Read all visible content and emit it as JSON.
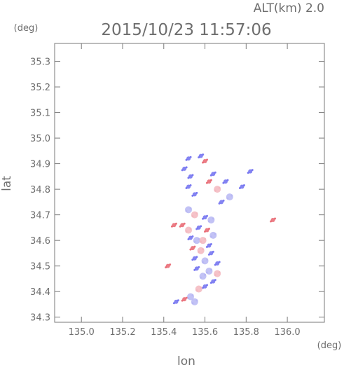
{
  "header": {
    "altitude": "ALT(km)  2.0",
    "timestamp": "2015/10/23 11:57:06"
  },
  "chart_data": {
    "type": "heatmap",
    "title": "2015/10/23 11:57:06",
    "annotation": "ALT(km)  2.0",
    "xlabel": "lon",
    "ylabel": "lat",
    "x_unit": "(deg)",
    "y_unit": "(deg)",
    "xlim": [
      134.87,
      136.18
    ],
    "ylim": [
      34.28,
      35.37
    ],
    "xticks": [
      "135.0",
      "135.2",
      "135.4",
      "135.6",
      "135.8",
      "136.0"
    ],
    "yticks": [
      "34.3",
      "34.4",
      "34.5",
      "34.6",
      "34.7",
      "34.8",
      "34.9",
      "35.0",
      "35.1",
      "35.2",
      "35.3"
    ],
    "colors": {
      "positive": "#e8646e",
      "negative": "#6e6ef0",
      "light_positive": "#f3b7be",
      "light_negative": "#b7b7f3",
      "axis": "#7a7a7a"
    },
    "speckles": [
      [
        135.52,
        34.92,
        "negative"
      ],
      [
        135.58,
        34.93,
        "negative"
      ],
      [
        135.6,
        34.91,
        "positive"
      ],
      [
        135.5,
        34.88,
        "negative"
      ],
      [
        135.53,
        34.85,
        "negative"
      ],
      [
        135.52,
        34.81,
        "negative"
      ],
      [
        135.55,
        34.78,
        "negative"
      ],
      [
        135.62,
        34.83,
        "positive"
      ],
      [
        135.64,
        34.86,
        "negative"
      ],
      [
        135.66,
        34.8,
        "light_positive"
      ],
      [
        135.7,
        34.83,
        "negative"
      ],
      [
        135.82,
        34.87,
        "negative"
      ],
      [
        135.78,
        34.81,
        "negative"
      ],
      [
        135.72,
        34.77,
        "light_negative"
      ],
      [
        135.68,
        34.75,
        "negative"
      ],
      [
        135.93,
        34.68,
        "positive"
      ],
      [
        135.52,
        34.72,
        "light_negative"
      ],
      [
        135.55,
        34.7,
        "light_positive"
      ],
      [
        135.6,
        34.69,
        "negative"
      ],
      [
        135.63,
        34.68,
        "light_negative"
      ],
      [
        135.49,
        34.66,
        "positive"
      ],
      [
        135.45,
        34.66,
        "positive"
      ],
      [
        135.52,
        34.64,
        "light_positive"
      ],
      [
        135.57,
        34.65,
        "negative"
      ],
      [
        135.61,
        34.64,
        "positive"
      ],
      [
        135.64,
        34.62,
        "light_negative"
      ],
      [
        135.53,
        34.61,
        "negative"
      ],
      [
        135.56,
        34.6,
        "light_negative"
      ],
      [
        135.59,
        34.6,
        "light_positive"
      ],
      [
        135.62,
        34.58,
        "negative"
      ],
      [
        135.54,
        34.57,
        "positive"
      ],
      [
        135.58,
        34.56,
        "light_positive"
      ],
      [
        135.63,
        34.55,
        "negative"
      ],
      [
        135.55,
        34.53,
        "negative"
      ],
      [
        135.6,
        34.52,
        "light_negative"
      ],
      [
        135.66,
        34.51,
        "negative"
      ],
      [
        135.42,
        34.5,
        "positive"
      ],
      [
        135.56,
        34.49,
        "negative"
      ],
      [
        135.62,
        34.48,
        "light_negative"
      ],
      [
        135.59,
        34.46,
        "light_negative"
      ],
      [
        135.64,
        34.44,
        "negative"
      ],
      [
        135.6,
        34.42,
        "negative"
      ],
      [
        135.57,
        34.41,
        "light_positive"
      ],
      [
        135.53,
        34.38,
        "light_negative"
      ],
      [
        135.5,
        34.37,
        "positive"
      ],
      [
        135.46,
        34.36,
        "negative"
      ],
      [
        135.55,
        34.36,
        "light_negative"
      ],
      [
        135.66,
        34.47,
        "light_positive"
      ]
    ]
  }
}
